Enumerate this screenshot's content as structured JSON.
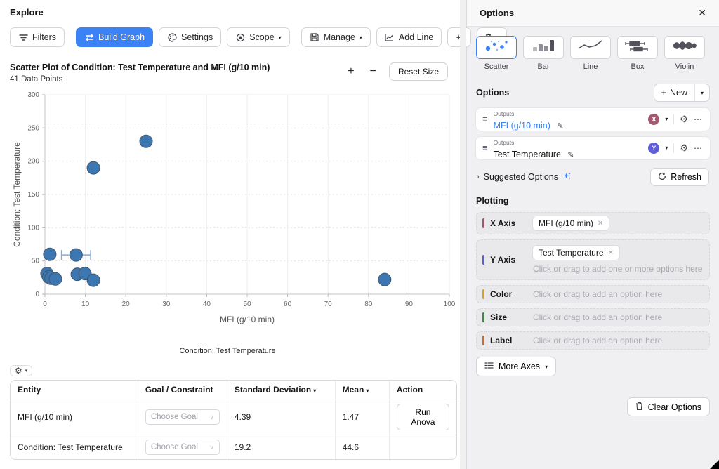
{
  "app": {
    "title": "Explore"
  },
  "toolbar": {
    "filters": "Filters",
    "build_graph": "Build Graph",
    "settings": "Settings",
    "scope": "Scope",
    "manage": "Manage",
    "add_line": "Add Line"
  },
  "chart": {
    "title": "Scatter Plot of Condition: Test Temperature and MFI (g/10 min)",
    "subtitle": "41 Data Points",
    "zoom_in": "+",
    "zoom_out": "−",
    "reset_size": "Reset Size",
    "caption": "Condition: Test Temperature"
  },
  "chart_data": {
    "type": "scatter",
    "title": "Scatter Plot of Condition: Test Temperature and MFI (g/10 min)",
    "points_count_label": "41 Data Points",
    "xlabel": "MFI (g/10 min)",
    "ylabel": "Condition: Test Temperature",
    "xlim": [
      0,
      100
    ],
    "ylim": [
      0,
      300
    ],
    "xticks": [
      0,
      10,
      20,
      30,
      40,
      50,
      60,
      70,
      80,
      90,
      100
    ],
    "yticks": [
      0,
      50,
      100,
      150,
      200,
      250,
      300
    ],
    "grid": true,
    "marker_color": "#3d77b2",
    "marker_stroke": "#42566b",
    "errorbar_color": "#84a9d9",
    "points": [
      {
        "x": 0.5,
        "y": 31
      },
      {
        "x": 0.9,
        "y": 26
      },
      {
        "x": 1.5,
        "y": 24
      },
      {
        "x": 2.6,
        "y": 23
      },
      {
        "x": 1.2,
        "y": 60
      },
      {
        "x": 7.7,
        "y": 59
      },
      {
        "x": 8,
        "y": 30
      },
      {
        "x": 9.9,
        "y": 31
      },
      {
        "x": 12,
        "y": 21
      },
      {
        "x": 12,
        "y": 190
      },
      {
        "x": 25,
        "y": 230
      },
      {
        "x": 84,
        "y": 22
      }
    ],
    "error_bars": [
      {
        "x": 7.7,
        "y": 59,
        "x_min": 4.1,
        "x_max": 11.3
      }
    ]
  },
  "stats_table": {
    "headers": {
      "entity": "Entity",
      "goal": "Goal / Constraint",
      "std": "Standard Deviation",
      "mean": "Mean",
      "action": "Action"
    },
    "rows": [
      {
        "entity": "MFI (g/10 min)",
        "goal_placeholder": "Choose Goal",
        "std": "4.39",
        "mean": "1.47",
        "action": "Run Anova"
      },
      {
        "entity": "Condition: Test Temperature",
        "goal_placeholder": "Choose Goal",
        "std": "19.2",
        "mean": "44.6",
        "action": ""
      }
    ]
  },
  "panel": {
    "title": "Options",
    "close": "✕",
    "chart_types": [
      {
        "label": "Scatter",
        "selected": true
      },
      {
        "label": "Bar",
        "selected": false
      },
      {
        "label": "Line",
        "selected": false
      },
      {
        "label": "Box",
        "selected": false
      },
      {
        "label": "Violin",
        "selected": false
      }
    ],
    "options_section": {
      "heading": "Options",
      "new_label": "New",
      "rows": [
        {
          "kicker": "Outputs",
          "name": "MFI (g/10 min)",
          "axis": "X",
          "badge_color": "#a4586e",
          "name_blue": true
        },
        {
          "kicker": "Outputs",
          "name": "Test Temperature",
          "axis": "Y",
          "badge_color": "#5e5ed8",
          "name_blue": false
        }
      ],
      "suggested": "Suggested Options",
      "refresh": "Refresh"
    },
    "plotting": {
      "heading": "Plotting",
      "rows": [
        {
          "label": "X Axis",
          "bar_color": "#a85568",
          "chip": "MFI (g/10 min)",
          "placeholder": ""
        },
        {
          "label": "Y Axis",
          "bar_color": "#5b5bd6",
          "chip": "Test Temperature",
          "placeholder": "Click or drag to add one or more options here"
        },
        {
          "label": "Color",
          "bar_color": "#d4a223",
          "chip": "",
          "placeholder": "Click or drag to add an option here"
        },
        {
          "label": "Size",
          "bar_color": "#3d8a43",
          "chip": "",
          "placeholder": "Click or drag to add an option here"
        },
        {
          "label": "Label",
          "bar_color": "#cc6a2f",
          "chip": "",
          "placeholder": "Click or drag to add an option here"
        }
      ],
      "more_axes": "More Axes",
      "clear_options": "Clear Options"
    }
  }
}
